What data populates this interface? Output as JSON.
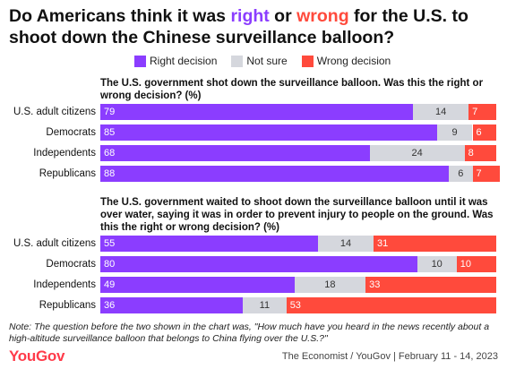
{
  "title": {
    "part1": "Do Americans think it was ",
    "right_word": "right",
    "part2": " or ",
    "wrong_word": "wrong",
    "part3": " for the U.S. to shoot down the Chinese surveillance balloon?"
  },
  "legend": [
    {
      "label": "Right decision",
      "color": "#8b3dff"
    },
    {
      "label": "Not sure",
      "color": "#d5d7dd"
    },
    {
      "label": "Wrong decision",
      "color": "#ff4a3c"
    }
  ],
  "colors": {
    "right": "#8b3dff",
    "notsure": "#d5d7dd",
    "wrong": "#ff4a3c"
  },
  "chart_data": [
    {
      "type": "bar",
      "stacked": true,
      "orientation": "horizontal",
      "title": "The U.S. government shot down the surveillance balloon. Was this the right or wrong decision? (%)",
      "categories": [
        "U.S. adult citizens",
        "Democrats",
        "Independents",
        "Republicans"
      ],
      "series": [
        {
          "name": "Right decision",
          "values": [
            79,
            85,
            68,
            88
          ]
        },
        {
          "name": "Not sure",
          "values": [
            14,
            9,
            24,
            6
          ]
        },
        {
          "name": "Wrong decision",
          "values": [
            7,
            6,
            8,
            7
          ]
        }
      ],
      "xlim": [
        0,
        100
      ]
    },
    {
      "type": "bar",
      "stacked": true,
      "orientation": "horizontal",
      "title": "The U.S. government waited to shoot down the surveillance balloon until it was over water, saying it was in order to prevent injury to people on the ground. Was this the right or wrong decision? (%)",
      "categories": [
        "U.S. adult citizens",
        "Democrats",
        "Independents",
        "Republicans"
      ],
      "series": [
        {
          "name": "Right decision",
          "values": [
            55,
            80,
            49,
            36
          ]
        },
        {
          "name": "Not sure",
          "values": [
            14,
            10,
            18,
            11
          ]
        },
        {
          "name": "Wrong decision",
          "values": [
            31,
            10,
            33,
            53
          ]
        }
      ],
      "xlim": [
        0,
        100
      ]
    }
  ],
  "note": "Note: The question before the two shown in the chart was, \"How much have you heard in the news recently about a high-altitude surveillance balloon that belongs to China flying over the U.S.?\"",
  "brand": "YouGov",
  "source": "The Economist / YouGov | February 11 - 14, 2023"
}
